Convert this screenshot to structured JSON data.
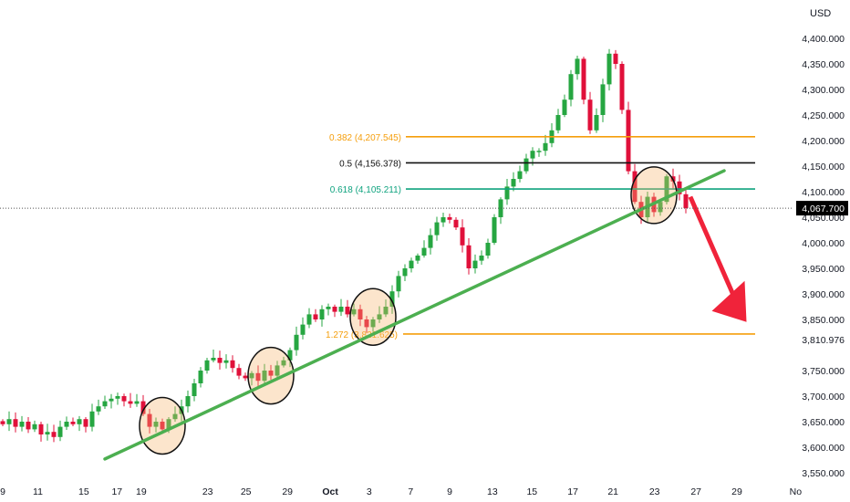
{
  "chart_data": {
    "type": "candlestick",
    "currency": "USD",
    "y_range": [
      3550,
      4400
    ],
    "y_ticks": [
      "4,400.000",
      "4,350.000",
      "4,300.000",
      "4,250.000",
      "4,200.000",
      "4,150.000",
      "4,100.000",
      "4,050.000",
      "4,000.000",
      "3,950.000",
      "3,900.000",
      "3,850.000",
      "3,750.000",
      "3,700.000",
      "3,650.000",
      "3,600.000",
      "3,550.000"
    ],
    "y_tick_values": [
      4400,
      4350,
      4300,
      4250,
      4200,
      4150,
      4100,
      4050,
      4000,
      3950,
      3900,
      3850,
      3750,
      3700,
      3650,
      3600,
      3550
    ],
    "x_ticks": [
      {
        "label": "9",
        "index": 0
      },
      {
        "label": "11",
        "index": 5.5
      },
      {
        "label": "15",
        "index": 12.7
      },
      {
        "label": "17",
        "index": 17.9
      },
      {
        "label": "19",
        "index": 21.7
      },
      {
        "label": "23",
        "index": 32.1
      },
      {
        "label": "25",
        "index": 38.1
      },
      {
        "label": "29",
        "index": 44.6
      },
      {
        "label": "Oct",
        "index": 51.3,
        "bold": true
      },
      {
        "label": "3",
        "index": 57.4
      },
      {
        "label": "7",
        "index": 63.9
      },
      {
        "label": "9",
        "index": 70
      },
      {
        "label": "13",
        "index": 76.7
      },
      {
        "label": "15",
        "index": 82.9
      },
      {
        "label": "17",
        "index": 89.3
      },
      {
        "label": "21",
        "index": 95.6
      },
      {
        "label": "23",
        "index": 102.1
      },
      {
        "label": "27",
        "index": 108.6
      },
      {
        "label": "29",
        "index": 115
      },
      {
        "label": "No",
        "index": 124.2
      }
    ],
    "closes": [
      3645,
      3655,
      3640,
      3650,
      3635,
      3645,
      3625,
      3630,
      3620,
      3640,
      3650,
      3645,
      3655,
      3640,
      3670,
      3680,
      3690,
      3695,
      3700,
      3690,
      3685,
      3690,
      3665,
      3640,
      3650,
      3635,
      3655,
      3665,
      3680,
      3700,
      3725,
      3750,
      3770,
      3775,
      3765,
      3770,
      3755,
      3740,
      3735,
      3745,
      3730,
      3750,
      3740,
      3760,
      3770,
      3790,
      3820,
      3840,
      3860,
      3850,
      3870,
      3875,
      3865,
      3875,
      3860,
      3870,
      3850,
      3835,
      3850,
      3860,
      3875,
      3905,
      3935,
      3950,
      3965,
      3975,
      3990,
      4015,
      4040,
      4050,
      4045,
      4030,
      3995,
      3950,
      3965,
      3975,
      4000,
      4050,
      4085,
      4110,
      4125,
      4140,
      4165,
      4180,
      4180,
      4195,
      4220,
      4250,
      4280,
      4330,
      4360,
      4280,
      4220,
      4250,
      4310,
      4370,
      4350,
      4260,
      4140,
      4080,
      4050,
      4090,
      4060,
      4080,
      4130,
      4120,
      4095,
      4067.7
    ],
    "current_price": "4,067.700",
    "current_price_value": 4067.7,
    "fib_levels": [
      {
        "label": "0.382 (4,207.545)",
        "value": 4207.545,
        "color": "#f59e0b",
        "start_index": 63
      },
      {
        "label": "0.5 (4,156.378)",
        "value": 4156.378,
        "color": "#111111",
        "start_index": 63
      },
      {
        "label": "0.618 (4,105.211)",
        "value": 4105.211,
        "color": "#0fa37f",
        "start_index": 63
      },
      {
        "label": "1.272 (3,821.625)",
        "value": 3821.625,
        "color": "#f59e0b",
        "start_index": 51
      }
    ],
    "target_label": "3,810.976",
    "target_value": 3810.976,
    "trendline": {
      "from": {
        "index": 16,
        "price": 3577
      },
      "to": {
        "index": 113,
        "price": 4141
      },
      "color": "#4caf50"
    },
    "highlight_circles": [
      {
        "index": 25,
        "price": 3642
      },
      {
        "index": 42,
        "price": 3740
      },
      {
        "index": 58,
        "price": 3855
      },
      {
        "index": 102,
        "price": 4093
      }
    ],
    "arrow": {
      "from": {
        "index": 107.7,
        "price": 4090
      },
      "to": {
        "index": 116.5,
        "price": 3845
      },
      "color": "#f0233a"
    },
    "colors": {
      "up": "#26a641",
      "down": "#e0103a",
      "axis_text": "#131722"
    }
  }
}
